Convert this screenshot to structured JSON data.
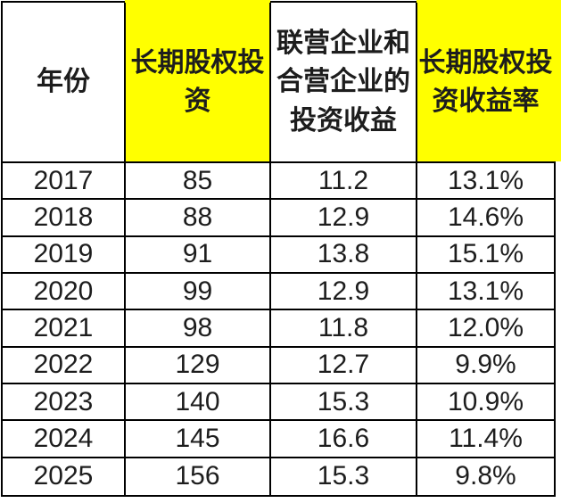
{
  "chart_data": {
    "type": "table",
    "columns": [
      "年份",
      "长期股权投资",
      "联营企业和合营企业的投资收益",
      "长期股权投资收益率"
    ],
    "rows": [
      [
        "2017",
        "85",
        "11.2",
        "13.1%"
      ],
      [
        "2018",
        "88",
        "12.9",
        "14.6%"
      ],
      [
        "2019",
        "91",
        "13.8",
        "15.1%"
      ],
      [
        "2020",
        "99",
        "12.9",
        "13.1%"
      ],
      [
        "2021",
        "98",
        "11.8",
        "12.0%"
      ],
      [
        "2022",
        "129",
        "12.7",
        "9.9%"
      ],
      [
        "2023",
        "140",
        "15.3",
        "10.9%"
      ],
      [
        "2024",
        "145",
        "16.6",
        "11.4%"
      ],
      [
        "2025",
        "156",
        "15.3",
        "9.8%"
      ]
    ]
  },
  "header_display": {
    "year": "年份",
    "investment": "长期股权投\n资",
    "income": "联营企业和\n合营企业的\n投资收益",
    "roe": "长期股权投\n资收益率"
  },
  "colors": {
    "highlight_yellow": "#FFFF00",
    "border_black": "#000000",
    "text": "#1D1D1D",
    "background": "#FFFFFF"
  }
}
